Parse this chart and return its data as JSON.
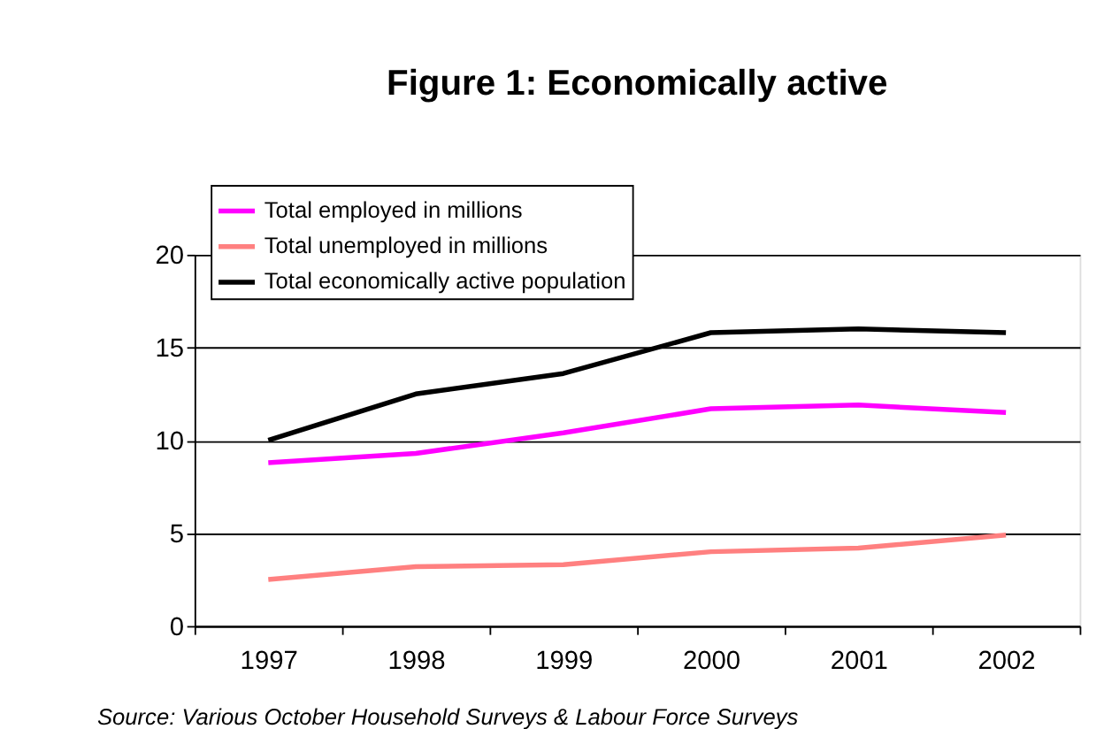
{
  "chart_data": {
    "type": "line",
    "title": "Figure 1: Economically active",
    "categories": [
      "1997",
      "1998",
      "1999",
      "2000",
      "2001",
      "2002"
    ],
    "series": [
      {
        "name": "Total employed in millions",
        "color": "#ff00ff",
        "values": [
          8.8,
          9.3,
          10.4,
          11.7,
          11.9,
          11.5
        ]
      },
      {
        "name": "Total unemployed in millions",
        "color": "#ff8080",
        "values": [
          2.5,
          3.2,
          3.3,
          4.0,
          4.2,
          4.9
        ]
      },
      {
        "name": "Total economically active population",
        "color": "#000000",
        "values": [
          10.0,
          12.5,
          13.6,
          15.8,
          16.0,
          15.8
        ]
      }
    ],
    "ylim": [
      0,
      20
    ],
    "yticks": [
      0,
      5,
      10,
      15,
      20
    ],
    "grid": "y",
    "legend": "top left",
    "marker": "none",
    "line_style": "solid",
    "annotations": [
      "Source: Various October Household Surveys & Labour Force Surveys"
    ]
  }
}
